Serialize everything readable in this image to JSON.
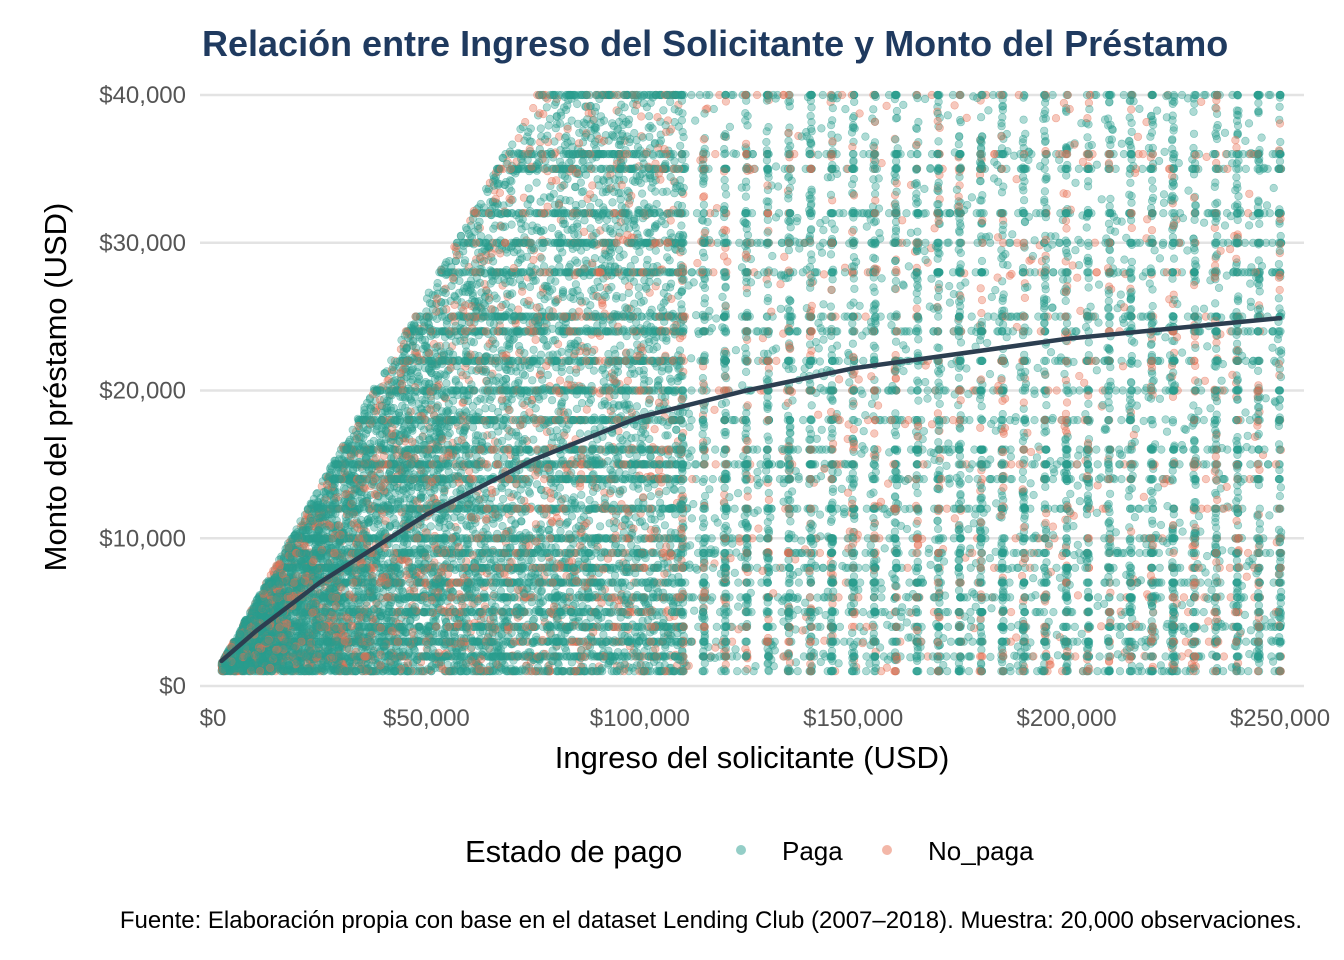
{
  "chart_data": {
    "type": "scatter",
    "title": "Relación entre Ingreso del Solicitante y Monto del Préstamo",
    "xlabel": "Ingreso del solicitante (USD)",
    "ylabel": "Monto del préstamo (USD)",
    "xlim": [
      0,
      250000
    ],
    "ylim": [
      0,
      40000
    ],
    "x_ticks": [
      0,
      50000,
      100000,
      150000,
      200000,
      250000
    ],
    "x_tick_labels": [
      "$0",
      "$50,000",
      "$100,000",
      "$150,000",
      "$200,000",
      "$250,000"
    ],
    "y_ticks": [
      0,
      10000,
      20000,
      30000,
      40000
    ],
    "y_tick_labels": [
      "$0",
      "$10,000",
      "$20,000",
      "$30,000",
      "$40,000"
    ],
    "grid": true,
    "legend": {
      "title": "Estado de pago",
      "position": "bottom",
      "entries": [
        {
          "label": "Paga",
          "color": "#2a9d8f"
        },
        {
          "label": "No_paga",
          "color": "#e76f51"
        }
      ]
    },
    "caption": "Fuente: Elaboración propia con base en el dataset Lending Club (2007–2018). Muestra: 20,000 observaciones.",
    "sample_size": 20000,
    "series": [
      {
        "name": "Paga",
        "color": "#2a9d8f",
        "point_alpha": 0.4
      },
      {
        "name": "No_paga",
        "color": "#e76f51",
        "point_alpha": 0.4
      }
    ],
    "trend": {
      "color": "#2c3e50",
      "x": [
        2000,
        10000,
        25000,
        50000,
        75000,
        100000,
        125000,
        150000,
        175000,
        200000,
        225000,
        250000
      ],
      "y": [
        1700,
        3700,
        7000,
        11600,
        15300,
        18200,
        20000,
        21500,
        22500,
        23500,
        24200,
        24900
      ]
    }
  }
}
